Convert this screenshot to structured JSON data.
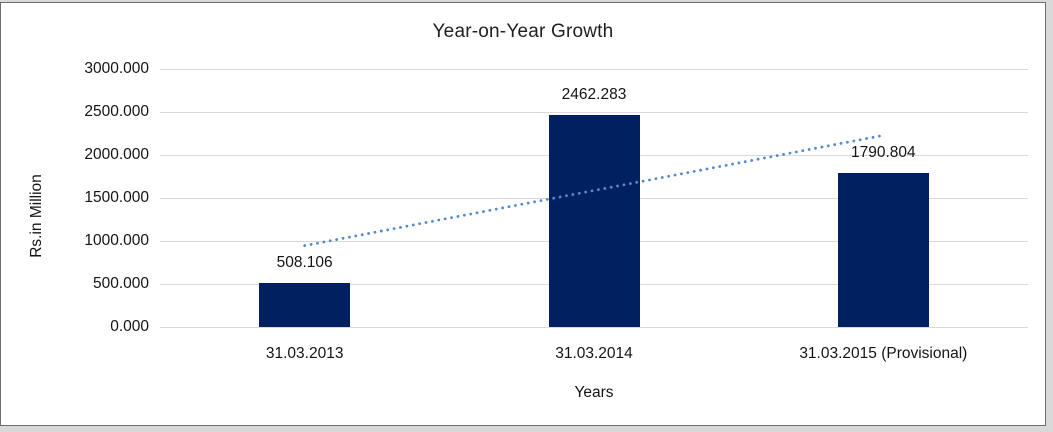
{
  "window": {
    "background_color": "#d9d9d9",
    "frame_border_color": "#6e6e6e",
    "frame_background": "#ffffff"
  },
  "chart_data": {
    "type": "bar",
    "title": "Year-on-Year Growth",
    "xlabel": "Years",
    "ylabel": "Rs.in Million",
    "categories": [
      "31.03.2013",
      "31.03.2014",
      "31.03.2015 (Provisional)"
    ],
    "values": [
      508.106,
      2462.283,
      1790.804
    ],
    "value_labels": [
      "508.106",
      "2462.283",
      "1790.804"
    ],
    "ymin": 0,
    "ymax": 3000,
    "ytick_values": [
      0,
      500,
      1000,
      1500,
      2000,
      2500,
      3000
    ],
    "ytick_labels": [
      "0.000",
      "500.000",
      "1000.000",
      "1500.000",
      "2000.000",
      "2500.000",
      "3000.000"
    ],
    "grid": true,
    "legend": "none",
    "bar_color": "#002060",
    "gridline_color": "#d9d9d9",
    "text_color": "#141414",
    "trendline": {
      "type": "linear",
      "style": "dotted",
      "color": "#5589cb",
      "span": "first-to-last-category-center"
    }
  }
}
